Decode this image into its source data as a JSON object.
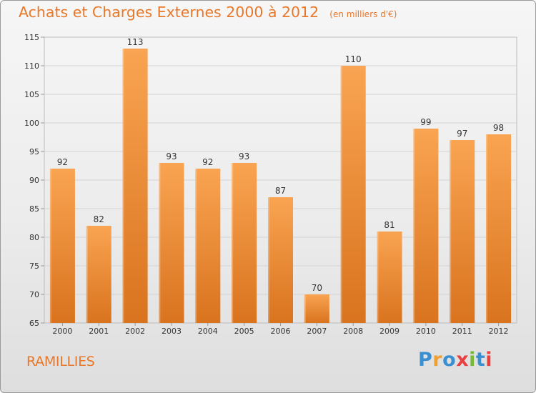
{
  "title": "Achats et Charges Externes 2000 à 2012",
  "unit": "(en milliers d'€)",
  "city": "RAMILLIES",
  "logo": {
    "text": "Proxiti",
    "colors": [
      "#3a8fd0",
      "#f0a030",
      "#3a8fd0",
      "#e84040",
      "#7ab83a",
      "#3a8fd0",
      "#e84040"
    ]
  },
  "colors": {
    "bar_top": "#f9a452",
    "bar_bottom": "#d9731e",
    "accent": "#e8782a"
  },
  "chart_data": {
    "type": "bar",
    "categories": [
      "2000",
      "2001",
      "2002",
      "2003",
      "2004",
      "2005",
      "2006",
      "2007",
      "2008",
      "2009",
      "2010",
      "2011",
      "2012"
    ],
    "values": [
      92,
      82,
      113,
      93,
      92,
      93,
      87,
      70,
      110,
      81,
      99,
      97,
      98
    ],
    "ylim": [
      65,
      115
    ],
    "yticks": [
      65,
      70,
      75,
      80,
      85,
      90,
      95,
      100,
      105,
      110,
      115
    ],
    "grid": true,
    "data_labels": true
  }
}
